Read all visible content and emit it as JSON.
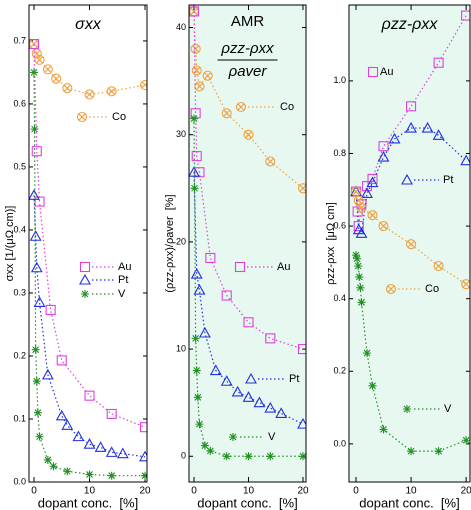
{
  "chart_data": [
    {
      "type": "line",
      "title": "σxx",
      "xlabel": "dopant conc.  [%]",
      "ylabel": "σxx [1/(μΩ cm)]",
      "xlim": [
        -0.9,
        20.36
      ],
      "xticks": [
        0,
        10,
        20
      ],
      "ylim": [
        0,
        0.757
      ],
      "yticks": [
        {
          "value": 0,
          "label": "0.0"
        },
        0.1,
        0.2,
        0.3,
        0.4,
        0.5,
        0.6,
        0.7
      ],
      "background": "#ffffff",
      "series": [
        {
          "name": "Co",
          "color": "#f0a040",
          "marker": "circle-x",
          "x": [
            0,
            0.5,
            1,
            2.5,
            4,
            6,
            10,
            14,
            20
          ],
          "values": [
            0.695,
            0.68,
            0.67,
            0.655,
            0.64,
            0.625,
            0.615,
            0.62,
            0.63
          ]
        },
        {
          "name": "Au",
          "color": "#e040e0",
          "marker": "square",
          "x": [
            0,
            0.5,
            1,
            3,
            5,
            10,
            14,
            20
          ],
          "values": [
            0.695,
            0.525,
            0.445,
            0.273,
            0.193,
            0.137,
            0.108,
            0.087
          ]
        },
        {
          "name": "Pt",
          "color": "#2030e0",
          "marker": "triangle",
          "x": [
            0,
            0.3,
            0.5,
            1,
            2.5,
            5,
            6,
            8,
            10,
            12,
            14,
            16,
            20
          ],
          "values": [
            0.455,
            0.39,
            0.34,
            0.285,
            0.17,
            0.105,
            0.09,
            0.072,
            0.06,
            0.055,
            0.047,
            0.045,
            0.04
          ]
        },
        {
          "name": "V",
          "color": "#209020",
          "marker": "asterisk",
          "x": [
            0,
            0.1,
            0.3,
            0.5,
            0.7,
            1,
            2.5,
            3.5,
            6,
            10,
            14,
            20
          ],
          "values": [
            0.65,
            0.56,
            0.21,
            0.16,
            0.11,
            0.072,
            0.035,
            0.025,
            0.017,
            0.012,
            0.01,
            0.01
          ]
        }
      ]
    },
    {
      "type": "line",
      "title": "AMR",
      "formula": {
        "numerator": "ρzz-ρxx",
        "denominator": "ρaver"
      },
      "xlabel": "dopant conc.  [%]",
      "ylabel": "(ρzz-ρxx)/ρaver  [%]",
      "xlim": [
        -0.92,
        20.55
      ],
      "xticks": [
        0,
        10,
        20
      ],
      "ylim": [
        -2.4,
        42.1
      ],
      "yticks": [
        0,
        10,
        20,
        30,
        40
      ],
      "background": "#e6f8f0",
      "series": [
        {
          "name": "Co",
          "color": "#f0a040",
          "marker": "circle-x",
          "x": [
            0,
            0.3,
            0.5,
            1,
            2.5,
            6,
            10,
            14,
            20
          ],
          "values": [
            41.5,
            38,
            36,
            34.5,
            35.5,
            32,
            30,
            27.5,
            25
          ]
        },
        {
          "name": "Au",
          "color": "#e040e0",
          "marker": "square",
          "x": [
            0,
            0.3,
            0.5,
            1,
            3,
            6,
            10,
            14,
            20
          ],
          "values": [
            41.5,
            32,
            28,
            26.5,
            18.5,
            15,
            12.5,
            11,
            10
          ]
        },
        {
          "name": "Pt",
          "color": "#2030e0",
          "marker": "triangle",
          "x": [
            0,
            0.5,
            1,
            2,
            4,
            6,
            8,
            10,
            12,
            14,
            16,
            20
          ],
          "values": [
            26.5,
            17,
            15.5,
            11.5,
            8,
            7,
            6,
            5.5,
            5,
            4.5,
            4,
            3
          ]
        },
        {
          "name": "V",
          "color": "#209020",
          "marker": "asterisk",
          "x": [
            0,
            0.1,
            0.3,
            0.5,
            0.7,
            1,
            2,
            3,
            6,
            10,
            14,
            20
          ],
          "values": [
            31.5,
            25,
            11,
            8,
            5.5,
            3,
            1,
            0.5,
            0,
            0,
            0,
            0
          ]
        }
      ]
    },
    {
      "type": "line",
      "title": "ρzz-ρxx",
      "xlabel": "dopant conc.  [%]",
      "ylabel": "ρzz-ρxx  [μΩ cm]",
      "xlim": [
        -1.27,
        20.7
      ],
      "xticks": [
        0,
        10,
        20
      ],
      "ylim": [
        -0.105,
        1.209
      ],
      "yticks": [
        {
          "value": 0,
          "label": "0.0"
        },
        0.2,
        0.4,
        0.6,
        0.8,
        {
          "value": 1,
          "label": "1.0"
        }
      ],
      "background": "#e6f8f0",
      "series": [
        {
          "name": "Au",
          "color": "#e040e0",
          "marker": "square",
          "x": [
            0,
            0.3,
            0.5,
            1,
            2,
            3,
            5,
            10,
            15,
            20
          ],
          "values": [
            0.695,
            0.64,
            0.6,
            0.66,
            0.71,
            0.73,
            0.82,
            0.93,
            1.05,
            1.18
          ]
        },
        {
          "name": "Pt",
          "color": "#2030e0",
          "marker": "triangle",
          "x": [
            0,
            0.5,
            1,
            2,
            3,
            5,
            7,
            10,
            13,
            15,
            20
          ],
          "values": [
            0.695,
            0.59,
            0.58,
            0.69,
            0.72,
            0.79,
            0.84,
            0.87,
            0.87,
            0.85,
            0.78
          ]
        },
        {
          "name": "Co",
          "color": "#f0a040",
          "marker": "circle-x",
          "x": [
            0,
            0.5,
            1,
            3,
            5,
            10,
            15,
            20
          ],
          "values": [
            0.695,
            0.67,
            0.65,
            0.63,
            0.6,
            0.55,
            0.49,
            0.44
          ]
        },
        {
          "name": "V",
          "color": "#209020",
          "marker": "asterisk",
          "x": [
            0,
            0.2,
            0.4,
            0.6,
            0.8,
            1,
            2,
            3,
            5,
            10,
            15,
            20
          ],
          "values": [
            0.52,
            0.51,
            0.49,
            0.46,
            0.43,
            0.39,
            0.25,
            0.16,
            0.04,
            -0.02,
            -0.02,
            0.01
          ]
        }
      ]
    }
  ]
}
